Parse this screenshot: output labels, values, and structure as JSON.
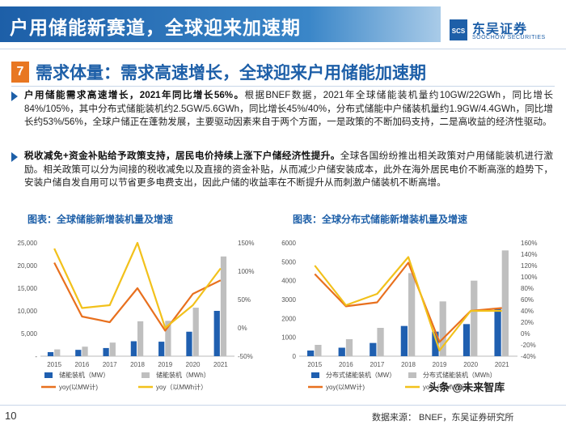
{
  "header": {
    "title": "户用储能新赛道，全球迎来加速期",
    "logo_cn": "东吴证券",
    "logo_en": "SOOCHOW SECURITIES",
    "logo_mark": "SCS"
  },
  "section": {
    "number": "7",
    "title": "需求体量：需求高速增长，全球迎来户用储能加速期"
  },
  "bullets": [
    {
      "bold": "户用储能需求高速增长，2021年同比增长56%。",
      "text": "根据BNEF数据，2021年全球储能装机量约10GW/22GWh，同比增长84%/105%，其中分布式储能装机约2.5GW/5.6GWh，同比增长45%/40%，分布式储能中户储装机量约1.9GW/4.4GWh，同比增长约53%/56%，全球户储正在蓬勃发展，主要驱动因素来自于两个方面，一是政策的不断加码支持，二是高收益的经济性驱动。"
    },
    {
      "bold": "税收减免+资金补贴给予政策支持，居民电价持续上涨下户储经济性提升。",
      "text": "全球各国纷纷推出相关政策对户用储能装机进行激励。相关政策可以分为间接的税收减免以及直接的资金补贴，从而减少户储安装成本，此外在海外居民电价不断高涨的趋势下，安装户储自发自用可以节省更多电费支出，因此户储的收益率在不断提升从而刺激户储装机不断高增。"
    }
  ],
  "charts": {
    "left_title": "图表：全球储能新增装机量及增速",
    "right_title": "图表：全球分布式储能新增装机量及增速"
  },
  "chart_data": [
    {
      "type": "bar",
      "title": "图表：全球储能新增装机量及增速",
      "categories": [
        "2015",
        "2016",
        "2017",
        "2018",
        "2019",
        "2020",
        "2021"
      ],
      "y_left_ticks": [
        "-",
        "5,000",
        "10,000",
        "15,000",
        "20,000",
        "25,000"
      ],
      "y_left_lim": [
        0,
        25000
      ],
      "y_right_ticks": [
        "-50%",
        "0%",
        "50%",
        "100%",
        "150%"
      ],
      "y_right_lim": [
        -50,
        150
      ],
      "series": [
        {
          "name": "储能装机（MW）",
          "kind": "bar",
          "color": "#1f5fb0",
          "values": [
            900,
            1400,
            1800,
            3300,
            3200,
            5400,
            10000
          ]
        },
        {
          "name": "储能装机（MWh）",
          "kind": "bar",
          "color": "#bfbfbf",
          "values": [
            1500,
            2100,
            3000,
            7700,
            7800,
            10700,
            22000
          ]
        },
        {
          "name": "yoy(以MW计)",
          "kind": "line",
          "color": "#e8701e",
          "values": [
            115,
            20,
            10,
            70,
            -5,
            60,
            84
          ]
        },
        {
          "name": "yoy（以MWh计）",
          "kind": "line",
          "color": "#f2c11b",
          "values": [
            140,
            35,
            40,
            150,
            0,
            40,
            105
          ]
        }
      ]
    },
    {
      "type": "bar",
      "title": "图表：全球分布式储能新增装机量及增速",
      "categories": [
        "2015",
        "2016",
        "2017",
        "2018",
        "2019",
        "2020",
        "2021"
      ],
      "y_left_ticks": [
        "0",
        "1000",
        "2000",
        "3000",
        "4000",
        "5000",
        "6000"
      ],
      "y_left_lim": [
        0,
        6000
      ],
      "y_right_ticks": [
        "-40%",
        "-20%",
        "0%",
        "20%",
        "40%",
        "60%",
        "80%",
        "100%",
        "120%",
        "140%",
        "160%"
      ],
      "y_right_lim": [
        -40,
        160
      ],
      "series": [
        {
          "name": "分布式储能装机（MW）",
          "kind": "bar",
          "color": "#1f5fb0",
          "values": [
            300,
            450,
            700,
            1600,
            1300,
            1700,
            2500
          ]
        },
        {
          "name": "分布式储能装机（MWh）",
          "kind": "bar",
          "color": "#bfbfbf",
          "values": [
            600,
            900,
            1500,
            4400,
            2900,
            4000,
            5600
          ]
        },
        {
          "name": "yoy(以MW计)",
          "kind": "line",
          "color": "#e8701e",
          "values": [
            105,
            48,
            55,
            125,
            -15,
            40,
            45
          ]
        },
        {
          "name": "yoy（以MWh计）",
          "kind": "line",
          "color": "#f2c11b",
          "values": [
            120,
            50,
            70,
            135,
            -30,
            40,
            40
          ]
        }
      ]
    }
  ],
  "footer": {
    "page": "10",
    "source": "数据来源：  BNEF，东吴证券研究所",
    "watermark": "头条 @未来智库"
  }
}
